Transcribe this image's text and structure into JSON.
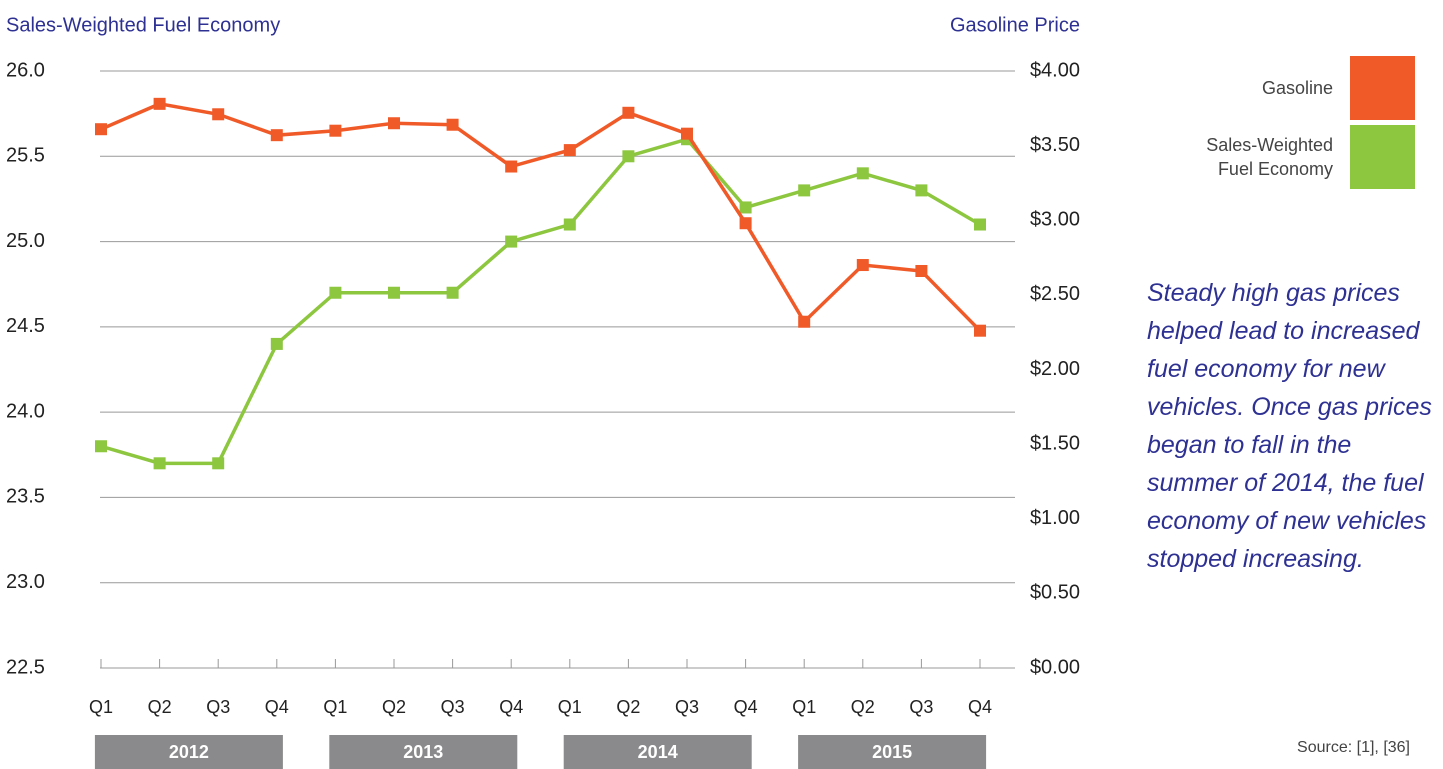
{
  "chart_data": {
    "type": "line",
    "y_label": "Sales-Weighted Fuel Economy",
    "y2_label": "Gasoline Price",
    "categories": [
      "Q1",
      "Q2",
      "Q3",
      "Q4",
      "Q1",
      "Q2",
      "Q3",
      "Q4",
      "Q1",
      "Q2",
      "Q3",
      "Q4",
      "Q1",
      "Q2",
      "Q3",
      "Q4"
    ],
    "groups": [
      "2012",
      "2013",
      "2014",
      "2015"
    ],
    "series": [
      {
        "name": "Gasoline",
        "color": "#f05a28",
        "axis": "y2",
        "values": [
          3.61,
          3.78,
          3.71,
          3.57,
          3.6,
          3.65,
          3.64,
          3.36,
          3.47,
          3.72,
          3.58,
          2.98,
          2.32,
          2.7,
          2.66,
          2.26
        ]
      },
      {
        "name": "Sales-Weighted Fuel Economy",
        "color": "#8dc63f",
        "values": [
          23.8,
          23.7,
          23.7,
          24.4,
          24.7,
          24.7,
          24.7,
          25.0,
          25.1,
          25.5,
          25.6,
          25.2,
          25.3,
          25.4,
          25.3,
          25.1
        ]
      }
    ],
    "ylim": [
      22.5,
      26.0
    ],
    "yticks": [
      22.5,
      {
        "value": 23,
        "label": "23.0"
      },
      23.5,
      {
        "value": 24,
        "label": "24.0"
      },
      24.5,
      {
        "value": 25,
        "label": "25.0"
      },
      25.5,
      {
        "value": 26,
        "label": "26.0"
      }
    ],
    "y2lim": [
      0,
      4
    ],
    "y2ticks": [
      {
        "value": 0,
        "label": "$0.00"
      },
      {
        "value": 0.5,
        "label": "$0.50"
      },
      {
        "value": 1,
        "label": "$1.00"
      },
      {
        "value": 1.5,
        "label": "$1.50"
      },
      {
        "value": 2,
        "label": "$2.00"
      },
      {
        "value": 2.5,
        "label": "$2.50"
      },
      {
        "value": 3,
        "label": "$3.00"
      },
      {
        "value": 3.5,
        "label": "$3.50"
      },
      {
        "value": 4,
        "label": "$4.00"
      }
    ],
    "grid": true,
    "annotation": "Steady high gas prices helped lead to increased fuel economy for new vehicles. Once gas prices began to fall in the summer of 2014, the fuel economy of new vehicles stopped increasing.",
    "source": "Source: [1], [36]"
  }
}
